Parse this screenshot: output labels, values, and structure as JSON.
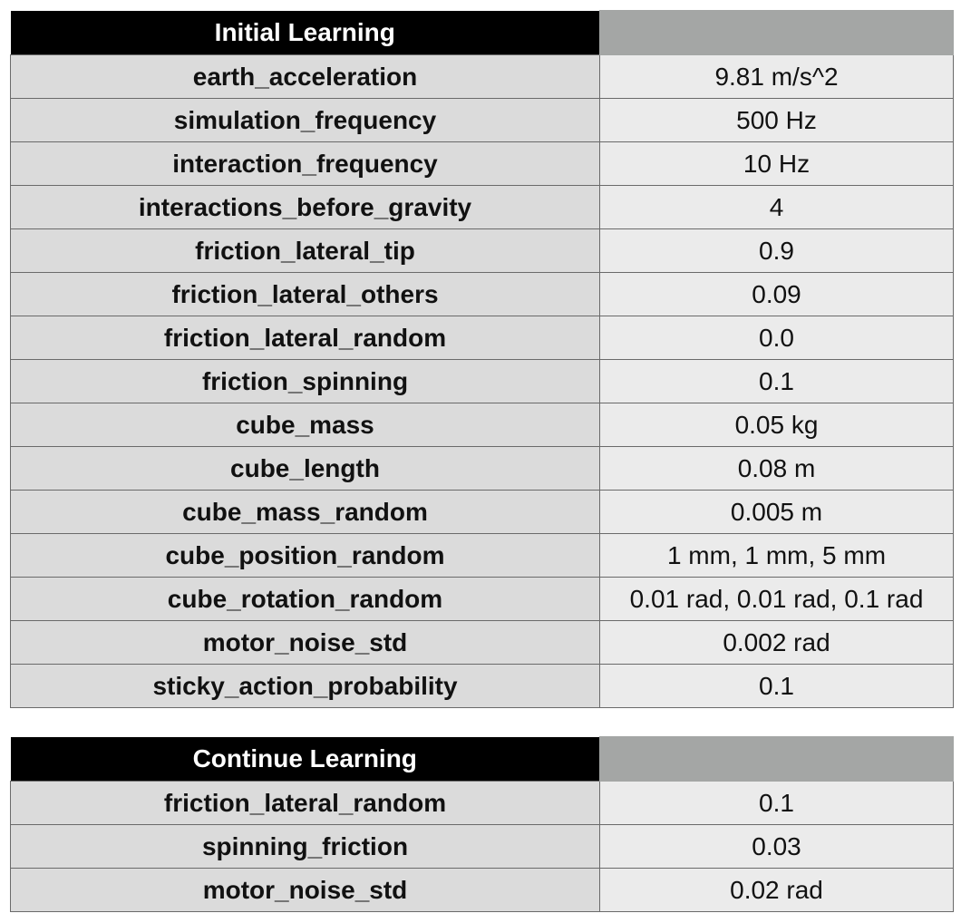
{
  "tables": [
    {
      "title": "Initial Learning",
      "rows": [
        {
          "name": "earth_acceleration",
          "value": "9.81 m/s^2"
        },
        {
          "name": "simulation_frequency",
          "value": "500 Hz"
        },
        {
          "name": "interaction_frequency",
          "value": "10 Hz"
        },
        {
          "name": "interactions_before_gravity",
          "value": "4"
        },
        {
          "name": "friction_lateral_tip",
          "value": "0.9"
        },
        {
          "name": "friction_lateral_others",
          "value": "0.09"
        },
        {
          "name": "friction_lateral_random",
          "value": "0.0"
        },
        {
          "name": "friction_spinning",
          "value": "0.1"
        },
        {
          "name": "cube_mass",
          "value": "0.05 kg"
        },
        {
          "name": "cube_length",
          "value": "0.08 m"
        },
        {
          "name": "cube_mass_random",
          "value": "0.005 m"
        },
        {
          "name": "cube_position_random",
          "value": "1 mm, 1 mm, 5 mm"
        },
        {
          "name": "cube_rotation_random",
          "value": "0.01 rad, 0.01 rad, 0.1 rad"
        },
        {
          "name": "motor_noise_std",
          "value": "0.002 rad"
        },
        {
          "name": "sticky_action_probability",
          "value": "0.1"
        }
      ]
    },
    {
      "title": "Continue Learning",
      "rows": [
        {
          "name": "friction_lateral_random",
          "value": "0.1"
        },
        {
          "name": "spinning_friction",
          "value": "0.03"
        },
        {
          "name": "motor_noise_std",
          "value": "0.02 rad"
        }
      ]
    }
  ],
  "colors": {
    "header_bg": "#000000",
    "header_text": "#ffffff",
    "header_blank_bg": "#a4a6a5",
    "name_cell_bg": "#dbdbdb",
    "value_cell_bg": "#ebebeb",
    "border": "#6a6a6a"
  }
}
